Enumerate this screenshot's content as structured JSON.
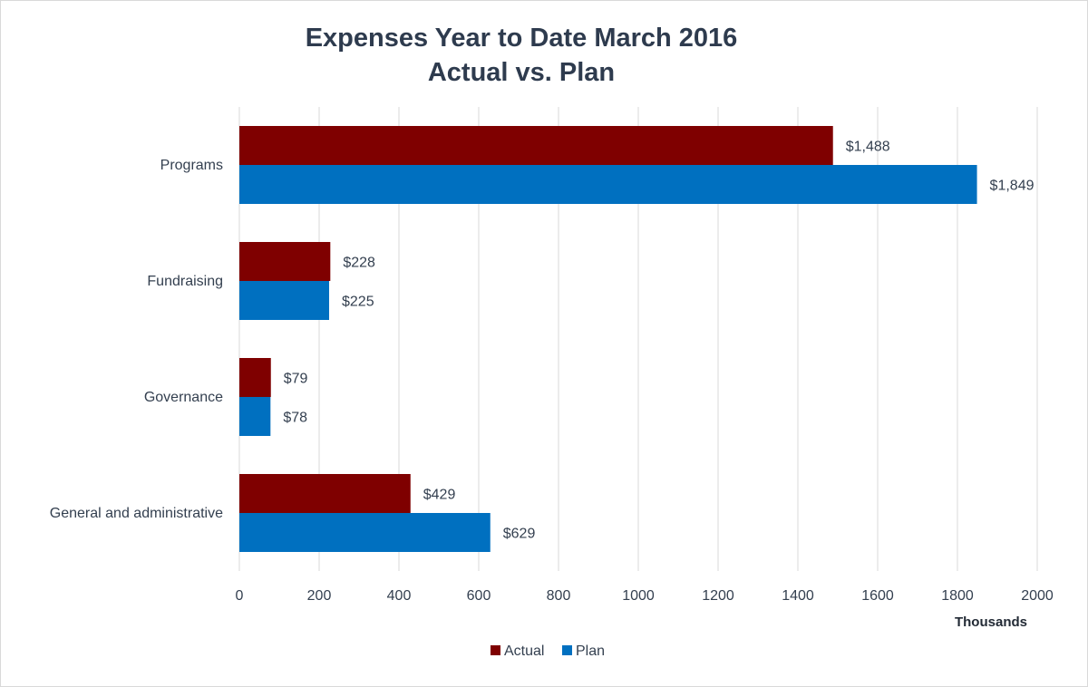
{
  "chart_data": {
    "type": "bar",
    "orientation": "horizontal",
    "title": "Expenses Year to Date March 2016",
    "subtitle": "Actual vs. Plan",
    "categories": [
      "Programs",
      "Fundraising",
      "Governance",
      "General and administrative"
    ],
    "series": [
      {
        "name": "Actual",
        "color": "#7f0000",
        "values": [
          1488,
          228,
          79,
          429
        ],
        "labels": [
          "$1,488",
          "$228",
          "$79",
          "$429"
        ]
      },
      {
        "name": "Plan",
        "color": "#0070c0",
        "values": [
          1849,
          225,
          78,
          629
        ],
        "labels": [
          "$1,849",
          "$225",
          "$78",
          "$629"
        ]
      }
    ],
    "xlim": [
      0,
      2000
    ],
    "xticks": [
      0,
      200,
      400,
      600,
      800,
      1000,
      1200,
      1400,
      1600,
      1800,
      2000
    ],
    "xunit": "Thousands",
    "grid": "vertical",
    "legend": "bottom"
  }
}
